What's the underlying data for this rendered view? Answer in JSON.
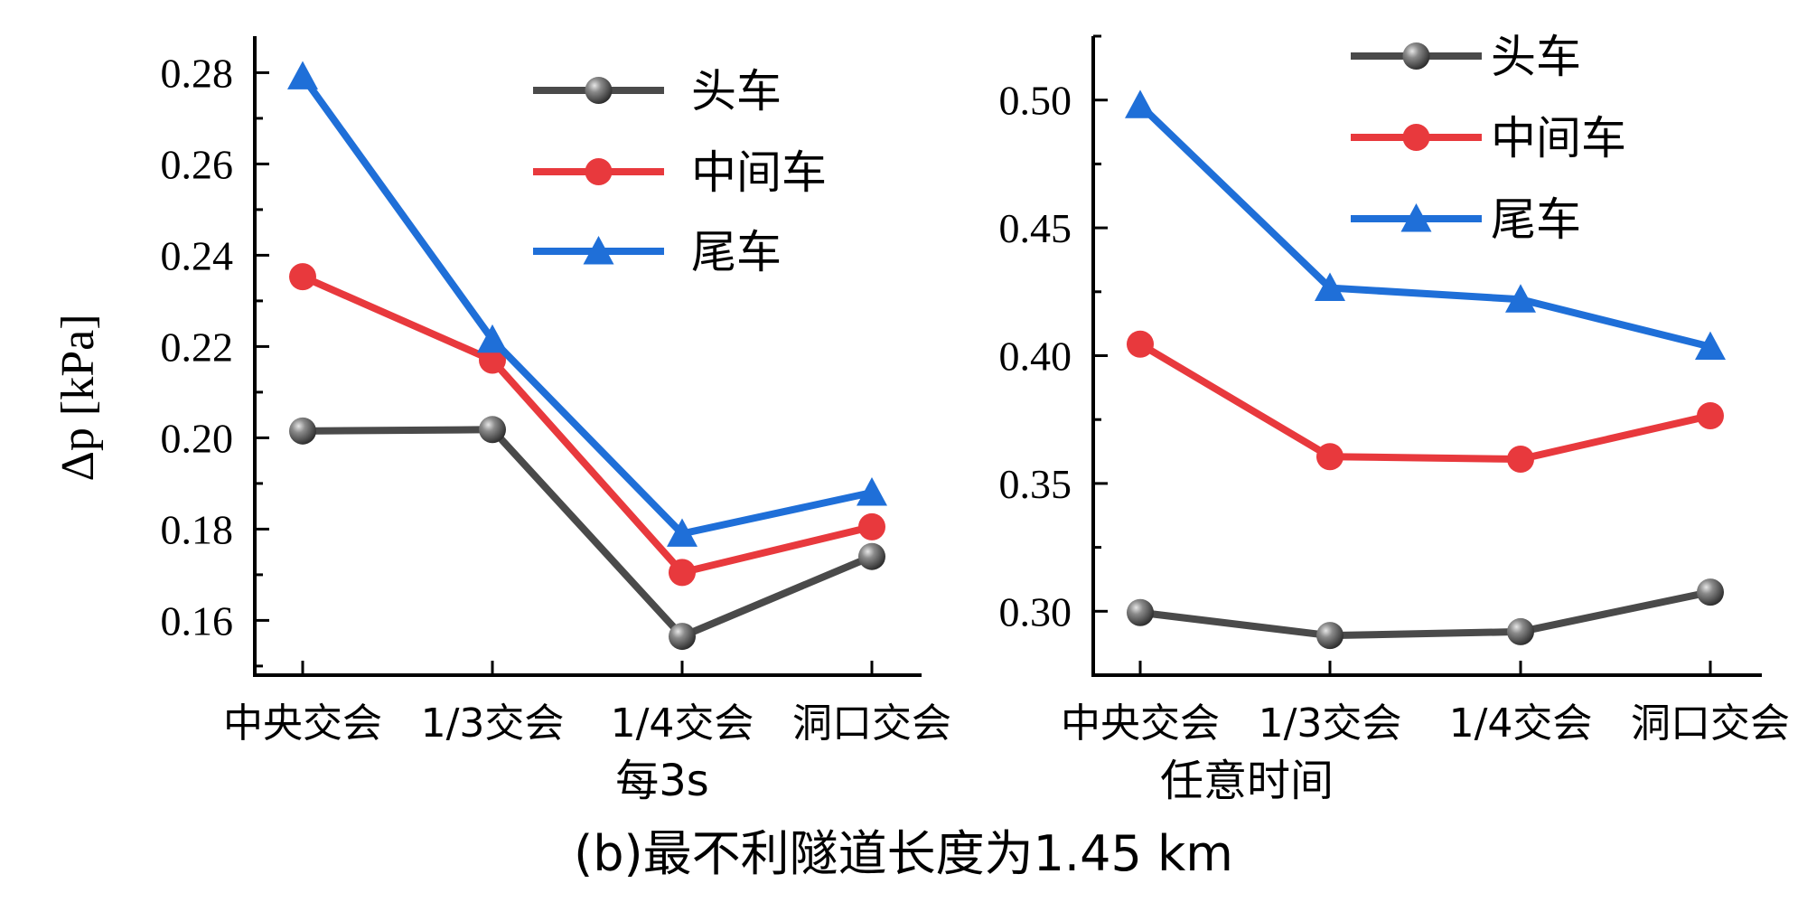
{
  "caption": "(b)最不利隧道长度为1.45 km",
  "ylabel": "Δp [kPa]",
  "chart_data": [
    {
      "type": "line",
      "xlabel": "每3s",
      "categories": [
        "中央交会",
        "1/3交会",
        "1/4交会",
        "洞口交会"
      ],
      "ylim": [
        0.148,
        0.288
      ],
      "yticks": [
        "0.16",
        "0.18",
        "0.20",
        "0.22",
        "0.24",
        "0.26",
        "0.28"
      ],
      "series": [
        {
          "name": "头车",
          "color": "#4a4a4a",
          "marker": "circle",
          "values": [
            0.2015,
            0.2018,
            0.1565,
            0.174
          ]
        },
        {
          "name": "中间车",
          "color": "#e8393d",
          "marker": "circle",
          "values": [
            0.2353,
            0.217,
            0.1705,
            0.1805
          ]
        },
        {
          "name": "尾车",
          "color": "#1f6fd8",
          "marker": "triangle",
          "values": [
            0.2792,
            0.2215,
            0.179,
            0.188
          ]
        }
      ]
    },
    {
      "type": "line",
      "xlabel": "任意时间",
      "categories": [
        "中央交会",
        "1/3交会",
        "1/4交会",
        "洞口交会"
      ],
      "ylim": [
        0.275,
        0.525
      ],
      "yticks": [
        "0.30",
        "0.35",
        "0.40",
        "0.45",
        "0.50"
      ],
      "series": [
        {
          "name": "头车",
          "color": "#4a4a4a",
          "marker": "circle",
          "values": [
            0.2995,
            0.2905,
            0.292,
            0.3075
          ]
        },
        {
          "name": "中间车",
          "color": "#e8393d",
          "marker": "circle",
          "values": [
            0.4045,
            0.3605,
            0.3595,
            0.3765
          ]
        },
        {
          "name": "尾车",
          "color": "#1f6fd8",
          "marker": "triangle",
          "values": [
            0.498,
            0.4265,
            0.422,
            0.4035
          ]
        }
      ]
    }
  ]
}
